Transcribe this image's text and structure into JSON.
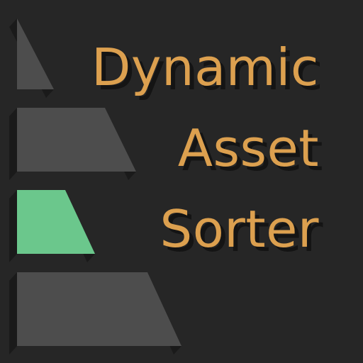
{
  "title_lines": [
    "Dynamic",
    "Asset",
    "Sorter"
  ],
  "colors": {
    "background": "#262626",
    "bar": "#4d4d4d",
    "bar_highlight": "#6bc78c",
    "shadow": "#1a1a1a",
    "title": "#dca04f"
  },
  "logo": {
    "bars": 4,
    "highlighted_bar": 3
  }
}
